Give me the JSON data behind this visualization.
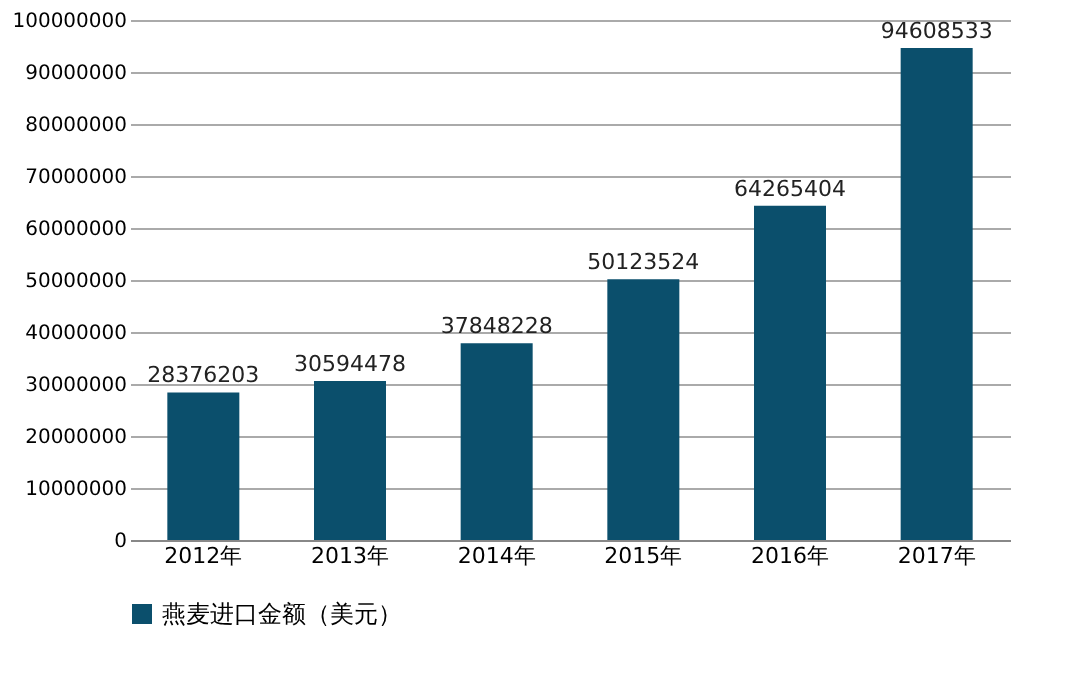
{
  "chart_data": {
    "type": "bar",
    "categories": [
      "2012年",
      "2013年",
      "2014年",
      "2015年",
      "2016年",
      "2017年"
    ],
    "series": [
      {
        "name": "燕麦进口金额（美元）",
        "color": "#0b4f6c",
        "values": [
          28376203,
          30594478,
          37848228,
          50123524,
          64265404,
          94608533
        ]
      }
    ],
    "ylim": [
      0,
      100000000
    ],
    "yticks": [
      0,
      10000000,
      20000000,
      30000000,
      40000000,
      50000000,
      60000000,
      70000000,
      80000000,
      90000000,
      100000000
    ],
    "grid": "y",
    "legend": "bottom",
    "data_labels": true
  }
}
